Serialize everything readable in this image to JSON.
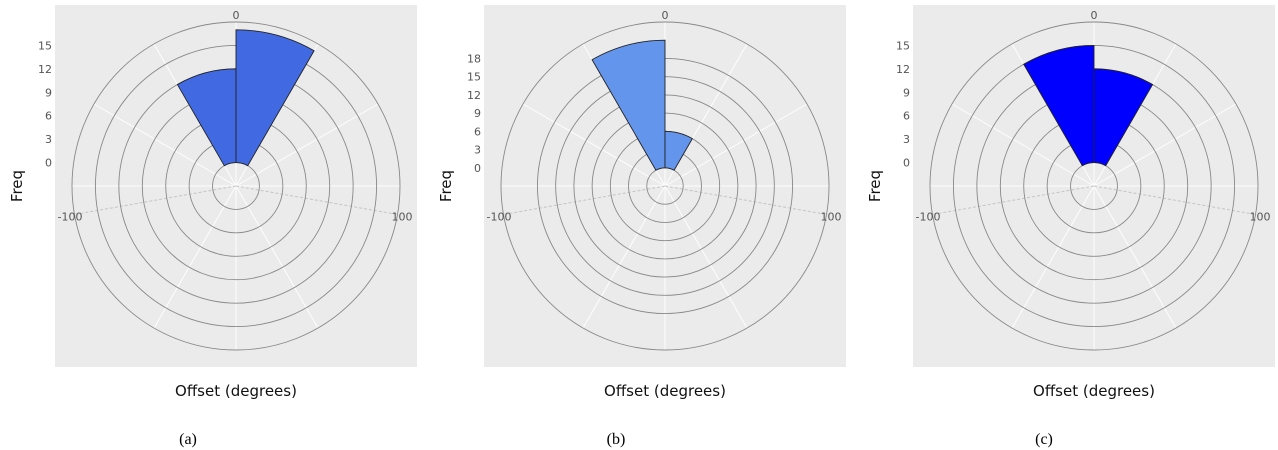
{
  "colors": {
    "panel_background": "#ebebeb",
    "ring": "#888888",
    "spoke": "#ffffff",
    "edge": "#222222"
  },
  "chart_data": [
    {
      "type": "polar-bar",
      "caption": "(a)",
      "xlabel": "Offset (degrees)",
      "ylabel": "Freq",
      "angle_ticks": [
        "0",
        "100",
        "-100"
      ],
      "radial_ticks": [
        "0",
        "3",
        "6",
        "9",
        "12",
        "15"
      ],
      "radial_ticks_values": [
        0,
        3,
        6,
        9,
        12,
        15
      ],
      "rlim": [
        -3,
        18
      ],
      "grid": true,
      "bar_color": "#4169e1",
      "bins": [
        {
          "start": -30,
          "end": 0,
          "value": 12
        },
        {
          "start": 0,
          "end": 30,
          "value": 17
        }
      ]
    },
    {
      "type": "polar-bar",
      "caption": "(b)",
      "xlabel": "Offset (degrees)",
      "ylabel": "Freq",
      "angle_ticks": [
        "0",
        "100",
        "-100"
      ],
      "radial_ticks": [
        "0",
        "3",
        "6",
        "9",
        "12",
        "15",
        "18"
      ],
      "radial_ticks_values": [
        0,
        3,
        6,
        9,
        12,
        15,
        18
      ],
      "rlim": [
        -3,
        24
      ],
      "grid": true,
      "bar_color": "#6495ed",
      "bins": [
        {
          "start": -30,
          "end": 0,
          "value": 21
        },
        {
          "start": 0,
          "end": 30,
          "value": 6
        }
      ]
    },
    {
      "type": "polar-bar",
      "caption": "(c)",
      "xlabel": "Offset (degrees)",
      "ylabel": "Freq",
      "angle_ticks": [
        "0",
        "100",
        "-100"
      ],
      "radial_ticks": [
        "0",
        "3",
        "6",
        "9",
        "12",
        "15"
      ],
      "radial_ticks_values": [
        0,
        3,
        6,
        9,
        12,
        15
      ],
      "rlim": [
        -3,
        18
      ],
      "grid": true,
      "bar_color": "#0000ff",
      "bins": [
        {
          "start": -30,
          "end": 0,
          "value": 15
        },
        {
          "start": 0,
          "end": 30,
          "value": 12
        }
      ]
    }
  ]
}
